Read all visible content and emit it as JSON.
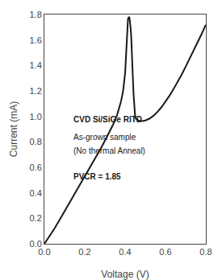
{
  "chart_data": {
    "type": "line",
    "xlabel": "Voltage (V)",
    "ylabel": "Current (mA)",
    "x": [
      0.0,
      0.02,
      0.05,
      0.08,
      0.1,
      0.13,
      0.16,
      0.19,
      0.22,
      0.25,
      0.28,
      0.3,
      0.32,
      0.34,
      0.36,
      0.37,
      0.38,
      0.39,
      0.395,
      0.4,
      0.402,
      0.404,
      0.406,
      0.408,
      0.41,
      0.412,
      0.414,
      0.416,
      0.418,
      0.42,
      0.422,
      0.424,
      0.426,
      0.428,
      0.43,
      0.432,
      0.434,
      0.436,
      0.438,
      0.44,
      0.442,
      0.444,
      0.446,
      0.448,
      0.45,
      0.46,
      0.47,
      0.48,
      0.5,
      0.52,
      0.54,
      0.56,
      0.58,
      0.6,
      0.62,
      0.64,
      0.66,
      0.68,
      0.7,
      0.72,
      0.74,
      0.76,
      0.78,
      0.8
    ],
    "values": [
      0.0,
      0.045,
      0.12,
      0.2,
      0.255,
      0.335,
      0.415,
      0.498,
      0.582,
      0.665,
      0.75,
      0.81,
      0.87,
      0.935,
      1.01,
      1.06,
      1.12,
      1.2,
      1.265,
      1.34,
      1.4,
      1.48,
      1.56,
      1.62,
      1.68,
      1.73,
      1.76,
      1.775,
      1.78,
      1.778,
      1.77,
      1.75,
      1.72,
      1.68,
      1.63,
      1.57,
      1.5,
      1.42,
      1.33,
      1.24,
      1.17,
      1.11,
      1.06,
      1.02,
      0.99,
      0.972,
      0.965,
      0.962,
      0.968,
      0.982,
      1.005,
      1.035,
      1.072,
      1.115,
      1.163,
      1.215,
      1.27,
      1.328,
      1.39,
      1.452,
      1.518,
      1.585,
      1.65,
      1.72
    ],
    "color": "#1a1a1a",
    "xlim": [
      0.0,
      0.8
    ],
    "ylim": [
      0.0,
      1.8
    ],
    "xticks": [
      {
        "value": 0.0,
        "label": "0.0"
      },
      0.2,
      0.4,
      0.6,
      0.8
    ],
    "yticks": [
      {
        "value": 0.0,
        "label": "0.0"
      },
      0.2,
      0.4,
      0.6,
      0.8,
      {
        "value": 1.0,
        "label": "1.0"
      },
      1.2,
      1.4,
      1.6,
      1.8
    ],
    "grid": false,
    "annotations": [
      "CVD Si/SiGe RITD",
      "As-grown sample",
      "(No thermal Anneal)",
      "PVCR = 1.85"
    ]
  }
}
